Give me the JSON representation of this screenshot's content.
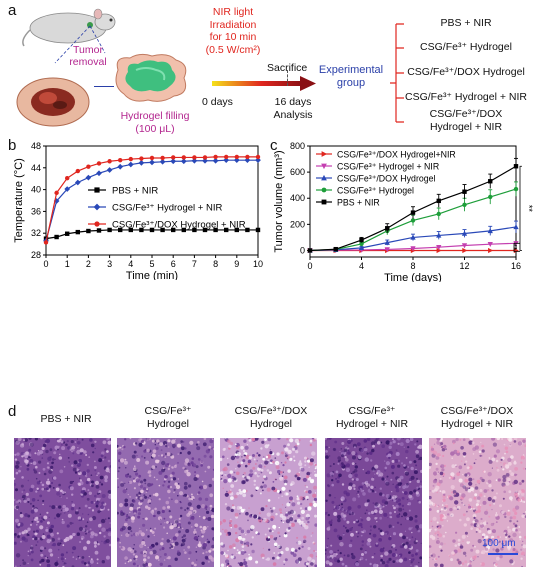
{
  "panel_a": {
    "label": "a",
    "tumor_removal": "Tumor\nremoval",
    "hydrogel_filling": "Hydrogel filling\n(100 μL)",
    "nir_text": "NIR light\nIrradiation\nfor 10 min\n(0.5 W/cm²)",
    "sacrifice": "Sacrifice",
    "days0": "0 days",
    "days16": "16 days\nAnalysis",
    "experimental_group": "Experimental\ngroup",
    "groups": [
      "PBS + NIR",
      "CSG/Fe³⁺ Hydrogel",
      "CSG/Fe³⁺/DOX Hydrogel",
      "CSG/Fe³⁺ Hydrogel + NIR",
      "CSG/Fe³⁺/DOX\nHydrogel + NIR"
    ]
  },
  "panel_b": {
    "label": "b",
    "chart_data": {
      "type": "line",
      "xlabel": "Time (min)",
      "ylabel": "Temperature (°C)",
      "xlim": [
        0,
        10
      ],
      "ylim": [
        28,
        48
      ],
      "xticks": [
        0,
        1,
        2,
        3,
        4,
        5,
        6,
        7,
        8,
        9,
        10
      ],
      "yticks": [
        28,
        32,
        36,
        40,
        44,
        48
      ],
      "legend_position": "middle-right",
      "series": [
        {
          "name": "PBS + NIR",
          "color": "#000000",
          "marker": "square",
          "x": [
            0,
            0.5,
            1,
            1.5,
            2,
            2.5,
            3,
            3.5,
            4,
            4.5,
            5,
            5.5,
            6,
            6.5,
            7,
            7.5,
            8,
            8.5,
            9,
            9.5,
            10
          ],
          "y": [
            31.0,
            31.3,
            31.9,
            32.2,
            32.4,
            32.5,
            32.6,
            32.6,
            32.6,
            32.6,
            32.6,
            32.6,
            32.6,
            32.6,
            32.6,
            32.6,
            32.6,
            32.6,
            32.6,
            32.6,
            32.6
          ]
        },
        {
          "name": "CSG/Fe³⁺ Hydrogel + NIR",
          "color": "#2a49b8",
          "marker": "diamond",
          "x": [
            0,
            0.5,
            1,
            1.5,
            2,
            2.5,
            3,
            3.5,
            4,
            4.5,
            5,
            5.5,
            6,
            6.5,
            7,
            7.5,
            8,
            8.5,
            9,
            9.5,
            10
          ],
          "y": [
            30.6,
            37.9,
            40.1,
            41.3,
            42.2,
            43.0,
            43.6,
            44.2,
            44.6,
            44.9,
            45.0,
            45.1,
            45.2,
            45.2,
            45.3,
            45.3,
            45.3,
            45.4,
            45.4,
            45.4,
            45.4
          ]
        },
        {
          "name": "CSG/Fe³⁺/DOX Hydrogel + NIR",
          "color": "#e0261f",
          "marker": "circle",
          "x": [
            0,
            0.5,
            1,
            1.5,
            2,
            2.5,
            3,
            3.5,
            4,
            4.5,
            5,
            5.5,
            6,
            6.5,
            7,
            7.5,
            8,
            8.5,
            9,
            9.5,
            10
          ],
          "y": [
            30.3,
            39.4,
            42.1,
            43.4,
            44.2,
            44.8,
            45.2,
            45.4,
            45.6,
            45.7,
            45.8,
            45.8,
            45.9,
            45.9,
            45.9,
            45.9,
            46.0,
            46.0,
            46.0,
            46.0,
            46.0
          ]
        }
      ]
    }
  },
  "panel_c": {
    "label": "c",
    "chart_data": {
      "type": "line",
      "xlabel": "Time (days)",
      "ylabel": "Tumor volume (mm³)",
      "xlim": [
        0,
        16
      ],
      "ylim": [
        -50,
        800
      ],
      "xticks": [
        0,
        4,
        8,
        12,
        16
      ],
      "yticks": [
        0,
        200,
        400,
        600,
        800
      ],
      "legend_position": "top-left",
      "significance": [
        "**",
        "**"
      ],
      "series": [
        {
          "name": "CSG/Fe³⁺/DOX Hydrogel+NIR",
          "color": "#e0261f",
          "marker": "triangle-right",
          "x": [
            0,
            2,
            4,
            6,
            8,
            10,
            12,
            14,
            16
          ],
          "y": [
            0,
            0,
            0,
            0,
            0,
            0,
            0,
            0,
            0
          ],
          "err": [
            0,
            0,
            0,
            0,
            0,
            0,
            0,
            0,
            0
          ]
        },
        {
          "name": "CSG/Fe³⁺ Hydrogel + NIR",
          "color": "#c43fb0",
          "marker": "triangle-down",
          "x": [
            0,
            2,
            4,
            6,
            8,
            10,
            12,
            14,
            16
          ],
          "y": [
            0,
            2,
            4,
            8,
            15,
            25,
            38,
            48,
            55
          ],
          "err": [
            0,
            2,
            3,
            4,
            5,
            6,
            7,
            8,
            8
          ]
        },
        {
          "name": "CSG/Fe³⁺/DOX Hydrogel",
          "color": "#2a49b8",
          "marker": "triangle-up",
          "x": [
            0,
            2,
            4,
            6,
            8,
            10,
            12,
            14,
            16
          ],
          "y": [
            0,
            5,
            20,
            60,
            100,
            115,
            130,
            150,
            180
          ],
          "err": [
            0,
            5,
            10,
            20,
            25,
            30,
            30,
            35,
            45
          ]
        },
        {
          "name": "CSG/Fe³⁺ Hydrogel",
          "color": "#1e9e3a",
          "marker": "circle",
          "x": [
            0,
            2,
            4,
            6,
            8,
            10,
            12,
            14,
            16
          ],
          "y": [
            0,
            8,
            50,
            150,
            230,
            280,
            350,
            410,
            470
          ],
          "err": [
            0,
            5,
            15,
            30,
            40,
            45,
            50,
            55,
            55
          ]
        },
        {
          "name": "PBS + NIR",
          "color": "#000000",
          "marker": "square",
          "x": [
            0,
            2,
            4,
            6,
            8,
            10,
            12,
            14,
            16
          ],
          "y": [
            0,
            10,
            80,
            170,
            290,
            380,
            450,
            530,
            645
          ],
          "err": [
            0,
            5,
            20,
            35,
            45,
            50,
            55,
            55,
            60
          ]
        }
      ]
    }
  },
  "panel_d": {
    "label": "d",
    "titles": [
      "PBS + NIR",
      "CSG/Fe³⁺\nHydrogel",
      "CSG/Fe³⁺/DOX\nHydrogel",
      "CSG/Fe³⁺\nHydrogel + NIR",
      "CSG/Fe³⁺/DOX\nHydrogel + NIR"
    ],
    "scale_bar": "100 μm"
  }
}
